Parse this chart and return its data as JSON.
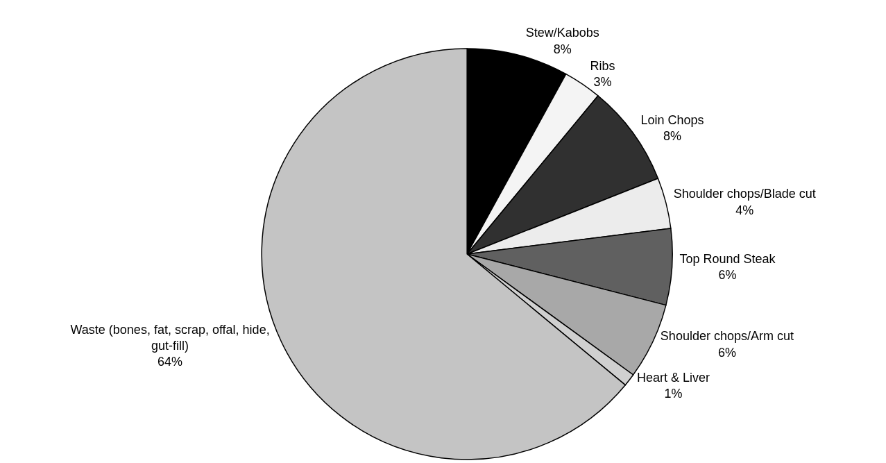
{
  "chart_data": {
    "type": "pie",
    "categories": [
      "Stew/Kabobs",
      "Ribs",
      "Loin Chops",
      "Shoulder chops/Blade cut",
      "Top Round Steak",
      "Shoulder chops/Arm cut",
      "Heart & Liver",
      "Waste (bones, fat, scrap, offal, hide, gut-fill)"
    ],
    "values": [
      8,
      3,
      8,
      4,
      6,
      6,
      1,
      64
    ],
    "value_labels": [
      "8%",
      "3%",
      "8%",
      "4%",
      "6%",
      "6%",
      "1%",
      "64%"
    ],
    "colors": [
      "#000000",
      "#f4f4f4",
      "#303030",
      "#ececec",
      "#606060",
      "#a8a8a8",
      "#d0d0d0",
      "#c4c4c4"
    ],
    "legend": false
  }
}
